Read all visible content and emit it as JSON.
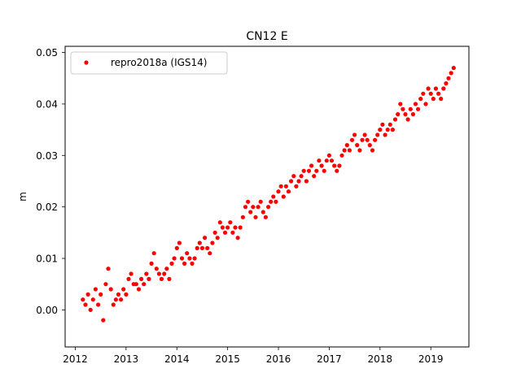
{
  "chart_data": {
    "type": "scatter",
    "title": "CN12 E",
    "xlabel": "",
    "ylabel": "m",
    "xlim": [
      2011.8,
      2019.75
    ],
    "ylim": [
      -0.0072,
      0.0512
    ],
    "x_ticks": [
      2012,
      2013,
      2014,
      2015,
      2016,
      2017,
      2018,
      2019
    ],
    "x_tick_labels": [
      "2012",
      "2013",
      "2014",
      "2015",
      "2016",
      "2017",
      "2018",
      "2019"
    ],
    "y_ticks": [
      0.0,
      0.01,
      0.02,
      0.03,
      0.04,
      0.05
    ],
    "y_tick_labels": [
      "0.00",
      "0.01",
      "0.02",
      "0.03",
      "0.04",
      "0.05"
    ],
    "grid": false,
    "legend": {
      "position": "top-left",
      "entries": [
        "repro2018a (IGS14)"
      ]
    },
    "series_color": "#ff0000",
    "series": [
      {
        "name": "repro2018a (IGS14)",
        "x_range": [
          2012.15,
          2019.45
        ],
        "trend": {
          "slope": 0.0059,
          "intercept_at_2012": 0.0012
        },
        "points": [
          [
            2012.15,
            0.002
          ],
          [
            2012.2,
            0.001
          ],
          [
            2012.25,
            0.003
          ],
          [
            2012.3,
            0.0
          ],
          [
            2012.35,
            0.002
          ],
          [
            2012.4,
            0.004
          ],
          [
            2012.45,
            0.001
          ],
          [
            2012.5,
            0.003
          ],
          [
            2012.55,
            -0.002
          ],
          [
            2012.6,
            0.005
          ],
          [
            2012.65,
            0.008
          ],
          [
            2012.7,
            0.004
          ],
          [
            2012.75,
            0.001
          ],
          [
            2012.8,
            0.002
          ],
          [
            2012.85,
            0.003
          ],
          [
            2012.9,
            0.002
          ],
          [
            2012.95,
            0.004
          ],
          [
            2013.0,
            0.003
          ],
          [
            2013.05,
            0.006
          ],
          [
            2013.1,
            0.007
          ],
          [
            2013.15,
            0.005
          ],
          [
            2013.2,
            0.005
          ],
          [
            2013.25,
            0.004
          ],
          [
            2013.3,
            0.006
          ],
          [
            2013.35,
            0.005
          ],
          [
            2013.4,
            0.007
          ],
          [
            2013.45,
            0.006
          ],
          [
            2013.5,
            0.009
          ],
          [
            2013.55,
            0.011
          ],
          [
            2013.6,
            0.008
          ],
          [
            2013.65,
            0.007
          ],
          [
            2013.7,
            0.006
          ],
          [
            2013.75,
            0.007
          ],
          [
            2013.8,
            0.008
          ],
          [
            2013.85,
            0.006
          ],
          [
            2013.9,
            0.009
          ],
          [
            2013.95,
            0.01
          ],
          [
            2014.0,
            0.012
          ],
          [
            2014.05,
            0.013
          ],
          [
            2014.1,
            0.01
          ],
          [
            2014.15,
            0.009
          ],
          [
            2014.2,
            0.011
          ],
          [
            2014.25,
            0.01
          ],
          [
            2014.3,
            0.009
          ],
          [
            2014.35,
            0.01
          ],
          [
            2014.4,
            0.012
          ],
          [
            2014.45,
            0.013
          ],
          [
            2014.5,
            0.012
          ],
          [
            2014.55,
            0.014
          ],
          [
            2014.6,
            0.012
          ],
          [
            2014.65,
            0.011
          ],
          [
            2014.7,
            0.013
          ],
          [
            2014.75,
            0.015
          ],
          [
            2014.8,
            0.014
          ],
          [
            2014.85,
            0.017
          ],
          [
            2014.9,
            0.016
          ],
          [
            2014.95,
            0.015
          ],
          [
            2015.0,
            0.016
          ],
          [
            2015.05,
            0.017
          ],
          [
            2015.1,
            0.015
          ],
          [
            2015.15,
            0.016
          ],
          [
            2015.2,
            0.014
          ],
          [
            2015.25,
            0.016
          ],
          [
            2015.3,
            0.018
          ],
          [
            2015.35,
            0.02
          ],
          [
            2015.4,
            0.021
          ],
          [
            2015.45,
            0.019
          ],
          [
            2015.5,
            0.02
          ],
          [
            2015.55,
            0.018
          ],
          [
            2015.6,
            0.02
          ],
          [
            2015.65,
            0.021
          ],
          [
            2015.7,
            0.019
          ],
          [
            2015.75,
            0.018
          ],
          [
            2015.8,
            0.02
          ],
          [
            2015.85,
            0.021
          ],
          [
            2015.9,
            0.022
          ],
          [
            2015.95,
            0.021
          ],
          [
            2016.0,
            0.023
          ],
          [
            2016.05,
            0.024
          ],
          [
            2016.1,
            0.022
          ],
          [
            2016.15,
            0.024
          ],
          [
            2016.2,
            0.023
          ],
          [
            2016.25,
            0.025
          ],
          [
            2016.3,
            0.026
          ],
          [
            2016.35,
            0.024
          ],
          [
            2016.4,
            0.025
          ],
          [
            2016.45,
            0.026
          ],
          [
            2016.5,
            0.027
          ],
          [
            2016.55,
            0.025
          ],
          [
            2016.6,
            0.027
          ],
          [
            2016.65,
            0.028
          ],
          [
            2016.7,
            0.026
          ],
          [
            2016.75,
            0.027
          ],
          [
            2016.8,
            0.029
          ],
          [
            2016.85,
            0.028
          ],
          [
            2016.9,
            0.027
          ],
          [
            2016.95,
            0.029
          ],
          [
            2017.0,
            0.03
          ],
          [
            2017.05,
            0.029
          ],
          [
            2017.1,
            0.028
          ],
          [
            2017.15,
            0.027
          ],
          [
            2017.2,
            0.028
          ],
          [
            2017.25,
            0.03
          ],
          [
            2017.3,
            0.031
          ],
          [
            2017.35,
            0.032
          ],
          [
            2017.4,
            0.031
          ],
          [
            2017.45,
            0.033
          ],
          [
            2017.5,
            0.034
          ],
          [
            2017.55,
            0.032
          ],
          [
            2017.6,
            0.031
          ],
          [
            2017.65,
            0.033
          ],
          [
            2017.7,
            0.034
          ],
          [
            2017.75,
            0.033
          ],
          [
            2017.8,
            0.032
          ],
          [
            2017.85,
            0.031
          ],
          [
            2017.9,
            0.033
          ],
          [
            2017.95,
            0.034
          ],
          [
            2018.0,
            0.035
          ],
          [
            2018.05,
            0.036
          ],
          [
            2018.1,
            0.034
          ],
          [
            2018.15,
            0.035
          ],
          [
            2018.2,
            0.036
          ],
          [
            2018.25,
            0.035
          ],
          [
            2018.3,
            0.037
          ],
          [
            2018.35,
            0.038
          ],
          [
            2018.4,
            0.04
          ],
          [
            2018.45,
            0.039
          ],
          [
            2018.5,
            0.038
          ],
          [
            2018.55,
            0.037
          ],
          [
            2018.6,
            0.039
          ],
          [
            2018.65,
            0.038
          ],
          [
            2018.7,
            0.04
          ],
          [
            2018.75,
            0.039
          ],
          [
            2018.8,
            0.041
          ],
          [
            2018.85,
            0.042
          ],
          [
            2018.9,
            0.04
          ],
          [
            2018.95,
            0.043
          ],
          [
            2019.0,
            0.042
          ],
          [
            2019.05,
            0.041
          ],
          [
            2019.1,
            0.043
          ],
          [
            2019.15,
            0.042
          ],
          [
            2019.2,
            0.041
          ],
          [
            2019.25,
            0.043
          ],
          [
            2019.3,
            0.044
          ],
          [
            2019.35,
            0.045
          ],
          [
            2019.4,
            0.046
          ],
          [
            2019.45,
            0.047
          ]
        ]
      }
    ]
  }
}
